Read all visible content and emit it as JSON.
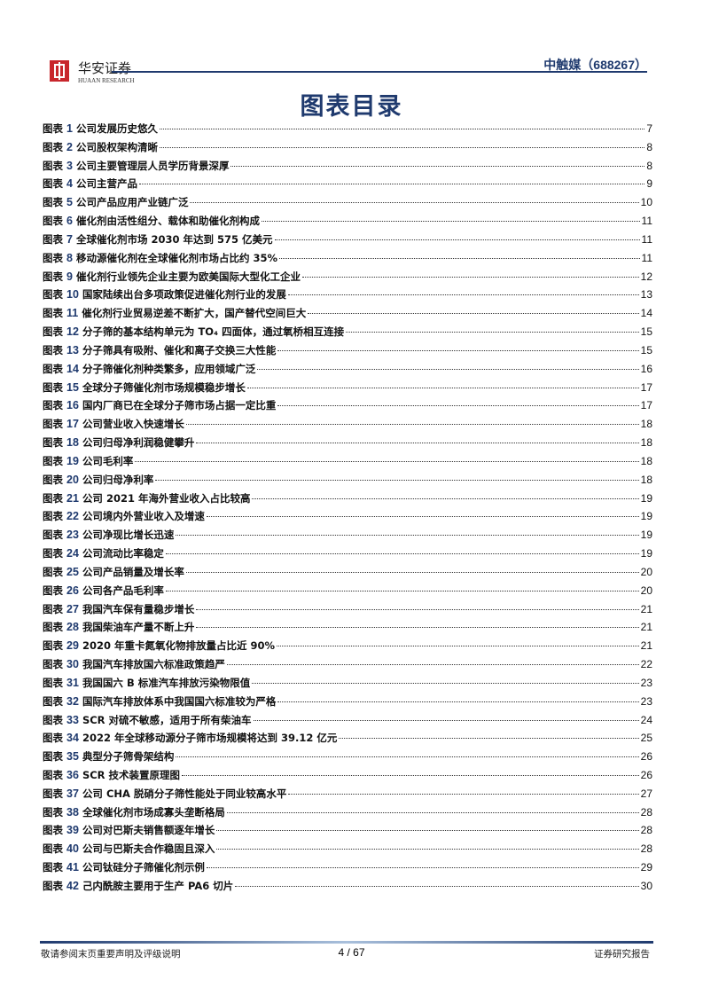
{
  "header": {
    "brand_cn": "华安证券",
    "brand_en": "HUAAN RESEARCH",
    "stock": "中触媒（688267）"
  },
  "title": "图表目录",
  "entries": [
    {
      "prefix": "图表",
      "num": "1",
      "text": "公司发展历史悠久",
      "page": "7"
    },
    {
      "prefix": "图表",
      "num": "2",
      "text": "公司股权架构清晰",
      "page": "8"
    },
    {
      "prefix": "图表",
      "num": "3",
      "text": "公司主要管理层人员学历背景深厚",
      "page": "8"
    },
    {
      "prefix": "图表",
      "num": "4",
      "text": "公司主营产品",
      "page": "9"
    },
    {
      "prefix": "图表",
      "num": "5",
      "text": "公司产品应用产业链广泛",
      "page": "10"
    },
    {
      "prefix": "图表",
      "num": "6",
      "text": "催化剂由活性组分、载体和助催化剂构成",
      "page": "11"
    },
    {
      "prefix": "图表",
      "num": "7",
      "text": "全球催化剂市场 2030 年达到 575 亿美元",
      "page": "11"
    },
    {
      "prefix": "图表",
      "num": "8",
      "text": "移动源催化剂在全球催化剂市场占比约 35%",
      "page": "11"
    },
    {
      "prefix": "图表",
      "num": "9",
      "text": "催化剂行业领先企业主要为欧美国际大型化工企业",
      "page": "12"
    },
    {
      "prefix": "图表",
      "num": "10",
      "text": "国家陆续出台多项政策促进催化剂行业的发展",
      "page": "13"
    },
    {
      "prefix": "图表",
      "num": "11",
      "text": "催化剂行业贸易逆差不断扩大，国产替代空间巨大",
      "page": "14"
    },
    {
      "prefix": "图表",
      "num": "12",
      "text": "分子筛的基本结构单元为 TO₄ 四面体，通过氧桥相互连接",
      "page": "15"
    },
    {
      "prefix": "图表",
      "num": "13",
      "text": "分子筛具有吸附、催化和离子交换三大性能",
      "page": "15"
    },
    {
      "prefix": "图表",
      "num": "14",
      "text": "分子筛催化剂种类繁多，应用领域广泛",
      "page": "16"
    },
    {
      "prefix": "图表",
      "num": "15",
      "text": "全球分子筛催化剂市场规模稳步增长",
      "page": "17"
    },
    {
      "prefix": "图表",
      "num": "16",
      "text": "国内厂商已在全球分子筛市场占据一定比重",
      "page": "17"
    },
    {
      "prefix": "图表",
      "num": "17",
      "text": "公司营业收入快速增长",
      "page": "18"
    },
    {
      "prefix": "图表",
      "num": "18",
      "text": "公司归母净利润稳健攀升",
      "page": "18"
    },
    {
      "prefix": "图表",
      "num": "19",
      "text": "公司毛利率",
      "page": "18"
    },
    {
      "prefix": "图表",
      "num": "20",
      "text": "公司归母净利率",
      "page": "18"
    },
    {
      "prefix": "图表",
      "num": "21",
      "text": "公司 2021 年海外营业收入占比较高",
      "page": "19"
    },
    {
      "prefix": "图表",
      "num": "22",
      "text": "公司境内外营业收入及增速",
      "page": "19"
    },
    {
      "prefix": "图表",
      "num": "23",
      "text": "公司净现比增长迅速",
      "page": "19"
    },
    {
      "prefix": "图表",
      "num": "24",
      "text": "公司流动比率稳定",
      "page": "19"
    },
    {
      "prefix": "图表",
      "num": "25",
      "text": "公司产品销量及增长率",
      "page": "20"
    },
    {
      "prefix": "图表",
      "num": "26",
      "text": "公司各产品毛利率",
      "page": "20"
    },
    {
      "prefix": "图表",
      "num": "27",
      "text": "我国汽车保有量稳步增长",
      "page": "21"
    },
    {
      "prefix": "图表",
      "num": "28",
      "text": "我国柴油车产量不断上升",
      "page": "21"
    },
    {
      "prefix": "图表",
      "num": "29",
      "text": "2020 年重卡氮氧化物排放量占比近 90%",
      "page": "21"
    },
    {
      "prefix": "图表",
      "num": "30",
      "text": "我国汽车排放国六标准政策趋严",
      "page": "22"
    },
    {
      "prefix": "图表",
      "num": "31",
      "text": "我国国六 B 标准汽车排放污染物限值",
      "page": "23"
    },
    {
      "prefix": "图表",
      "num": "32",
      "text": "国际汽车排放体系中我国国六标准较为严格",
      "page": "23"
    },
    {
      "prefix": "图表",
      "num": "33",
      "text": "SCR 对硫不敏感，适用于所有柴油车",
      "page": "24"
    },
    {
      "prefix": "图表",
      "num": "34",
      "text": "2022 年全球移动源分子筛市场规模将达到 39.12 亿元",
      "page": "25"
    },
    {
      "prefix": "图表",
      "num": "35",
      "text": "典型分子筛骨架结构",
      "page": "26"
    },
    {
      "prefix": "图表",
      "num": "36",
      "text": "SCR 技术装置原理图",
      "page": "26"
    },
    {
      "prefix": "图表",
      "num": "37",
      "text": "公司 CHA 脱硝分子筛性能处于同业较高水平",
      "page": "27"
    },
    {
      "prefix": "图表",
      "num": "38",
      "text": "全球催化剂市场成寡头垄断格局",
      "page": "28"
    },
    {
      "prefix": "图表",
      "num": "39",
      "text": "公司对巴斯夫销售额逐年增长",
      "page": "28"
    },
    {
      "prefix": "图表",
      "num": "40",
      "text": "公司与巴斯夫合作稳固且深入",
      "page": "28"
    },
    {
      "prefix": "图表",
      "num": "41",
      "text": "公司钛硅分子筛催化剂示例",
      "page": "29"
    },
    {
      "prefix": "图表",
      "num": "42",
      "text": "己内酰胺主要用于生产 PA6 切片",
      "page": "30"
    }
  ],
  "footer": {
    "left": "敬请参阅末页重要声明及评级说明",
    "page": "4 / 67",
    "right": "证券研究报告"
  }
}
